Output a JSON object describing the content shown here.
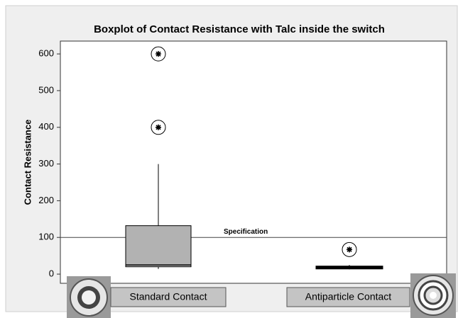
{
  "chart_data": {
    "type": "box",
    "title": "Boxplot of Contact Resistance with Talc inside the switch",
    "y_label": "Contact Resistance",
    "categories": [
      "Standard Contact",
      "Antiparticle Contact"
    ],
    "boxes": [
      {
        "min": 14,
        "q1": 20,
        "median": 25,
        "q3": 132,
        "max": 300,
        "outliers": [
          400,
          600
        ]
      },
      {
        "min": 13,
        "q1": 16,
        "median": 18,
        "q3": 20,
        "max": 25,
        "outliers": [
          67
        ]
      }
    ],
    "color": "#b2b2b2",
    "spec": {
      "value": 100,
      "label": "Specification"
    },
    "ylim": [
      -25,
      635
    ],
    "yticks": [
      0,
      100,
      200,
      300,
      400,
      500,
      600
    ]
  }
}
